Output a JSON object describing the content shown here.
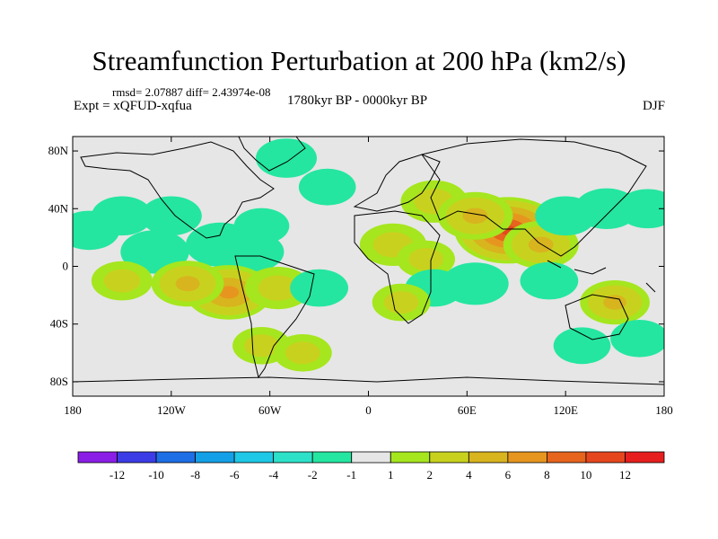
{
  "chart_data": {
    "type": "contour-map",
    "title": "Streamfunction Perturbation at 200 hPa (km2/s)",
    "stats_line": "rmsd= 2.07887 diff= 2.43974e-08",
    "experiment_label": "Expt = xQFUD-xqfua",
    "period_label": "1780kyr BP - 0000kyr BP",
    "season_label": "DJF",
    "xlim": [
      -180,
      180
    ],
    "ylim": [
      -90,
      90
    ],
    "x_ticks": [
      {
        "value": -180,
        "label": "180"
      },
      {
        "value": -120,
        "label": "120W"
      },
      {
        "value": -60,
        "label": "60W"
      },
      {
        "value": 0,
        "label": "0"
      },
      {
        "value": 60,
        "label": "60E"
      },
      {
        "value": 120,
        "label": "120E"
      },
      {
        "value": 180,
        "label": "180"
      }
    ],
    "y_ticks": [
      {
        "value": 80,
        "label": "80N"
      },
      {
        "value": 40,
        "label": "40N"
      },
      {
        "value": 0,
        "label": "0"
      },
      {
        "value": -40,
        "label": "40S"
      },
      {
        "value": -80,
        "label": "80S"
      }
    ],
    "colorbar": {
      "colors": [
        "#8a1ee6",
        "#3c3ce6",
        "#1e6ee6",
        "#14a0e6",
        "#1ec8e6",
        "#2de1c8",
        "#24e6a0",
        "#e6e6e6",
        "#a5e61e",
        "#c8d21e",
        "#d8b41e",
        "#e6961e",
        "#e6641e",
        "#e6461e",
        "#e61e1e"
      ],
      "labels": [
        "-12",
        "-10",
        "-8",
        "-6",
        "-4",
        "-2",
        "-1",
        "1",
        "2",
        "4",
        "6",
        "8",
        "10",
        "12"
      ]
    },
    "anomalies": [
      {
        "lon": -150,
        "lat": 35,
        "value": -2.5
      },
      {
        "lon": -120,
        "lat": 35,
        "value": -2.5
      },
      {
        "lon": -130,
        "lat": 10,
        "value": -3.8
      },
      {
        "lon": -90,
        "lat": 15,
        "value": -4
      },
      {
        "lon": -70,
        "lat": 10,
        "value": -2.5
      },
      {
        "lon": -170,
        "lat": 25,
        "value": -2.5
      },
      {
        "lon": -50,
        "lat": 75,
        "value": -2.5
      },
      {
        "lon": -25,
        "lat": 55,
        "value": -1.8
      },
      {
        "lon": -65,
        "lat": 28,
        "value": -1.5
      },
      {
        "lon": -85,
        "lat": -18,
        "value": 7
      },
      {
        "lon": -110,
        "lat": -12,
        "value": 4.5
      },
      {
        "lon": -55,
        "lat": -15,
        "value": 3.5
      },
      {
        "lon": -150,
        "lat": -10,
        "value": 2.5
      },
      {
        "lon": -30,
        "lat": -15,
        "value": -2
      },
      {
        "lon": -65,
        "lat": -55,
        "value": 2
      },
      {
        "lon": -40,
        "lat": -60,
        "value": 2
      },
      {
        "lon": 40,
        "lat": 45,
        "value": 3.5
      },
      {
        "lon": 15,
        "lat": 15,
        "value": 3.5
      },
      {
        "lon": 35,
        "lat": 5,
        "value": 2
      },
      {
        "lon": 85,
        "lat": 25,
        "value": 10.5
      },
      {
        "lon": 65,
        "lat": 35,
        "value": 5
      },
      {
        "lon": 105,
        "lat": 15,
        "value": 5
      },
      {
        "lon": 120,
        "lat": 35,
        "value": -2.5
      },
      {
        "lon": 145,
        "lat": 40,
        "value": -3
      },
      {
        "lon": 170,
        "lat": 40,
        "value": -2.5
      },
      {
        "lon": 65,
        "lat": -12,
        "value": -3.5
      },
      {
        "lon": 40,
        "lat": -15,
        "value": -2
      },
      {
        "lon": 110,
        "lat": -10,
        "value": -2
      },
      {
        "lon": 20,
        "lat": -25,
        "value": 2
      },
      {
        "lon": 150,
        "lat": -25,
        "value": 4
      },
      {
        "lon": 165,
        "lat": -50,
        "value": -2
      },
      {
        "lon": 130,
        "lat": -55,
        "value": -1.8
      }
    ]
  }
}
